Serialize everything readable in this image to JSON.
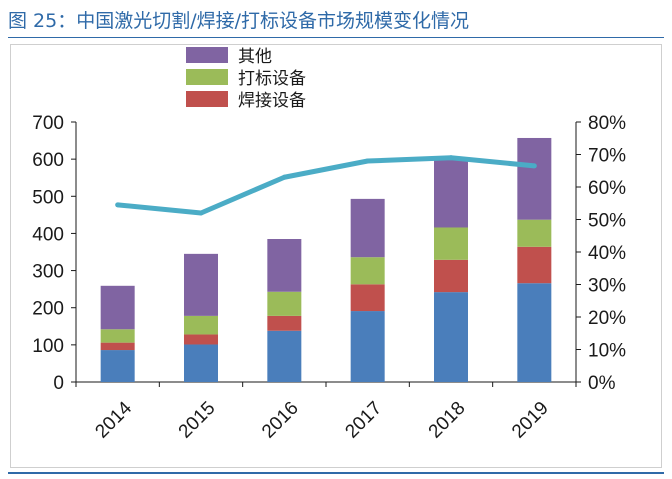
{
  "header": {
    "title": "图 25：中国激光切割/焊接/打标设备市场规模变化情况"
  },
  "chart_data": {
    "type": "bar",
    "stacked": true,
    "title": "",
    "xlabel": "",
    "ylabel": "",
    "categories": [
      "2014",
      "2015",
      "2016",
      "2017",
      "2018",
      "2019"
    ],
    "series": [
      {
        "name": "",
        "type": "bar",
        "axis": "left",
        "color": "#4a7ebb",
        "values": [
          86,
          101,
          138,
          191,
          242,
          266
        ]
      },
      {
        "name": "焊接设备",
        "type": "bar",
        "axis": "left",
        "color": "#c0504d",
        "values": [
          20,
          27,
          40,
          72,
          87,
          98
        ]
      },
      {
        "name": "打标设备",
        "type": "bar",
        "axis": "left",
        "color": "#9bbb59",
        "values": [
          36,
          50,
          65,
          73,
          87,
          73
        ]
      },
      {
        "name": "其他",
        "type": "bar",
        "axis": "left",
        "color": "#8064a2",
        "values": [
          117,
          167,
          142,
          157,
          184,
          220
        ]
      },
      {
        "name": "",
        "type": "line",
        "axis": "right",
        "color": "#4bacc6",
        "values": [
          0.545,
          0.52,
          0.63,
          0.68,
          0.69,
          0.665
        ]
      }
    ],
    "ylim": [
      0,
      700
    ],
    "yticks": [
      "0",
      "100",
      "200",
      "300",
      "400",
      "500",
      "600",
      "700"
    ],
    "y2lim": [
      0,
      0.8
    ],
    "y2ticks": [
      "0%",
      "10%",
      "20%",
      "30%",
      "40%",
      "50%",
      "60%",
      "70%",
      "80%"
    ],
    "legend": {
      "position": "top-left",
      "entries": [
        "其他",
        "打标设备",
        "焊接设备"
      ]
    },
    "grid": false
  }
}
